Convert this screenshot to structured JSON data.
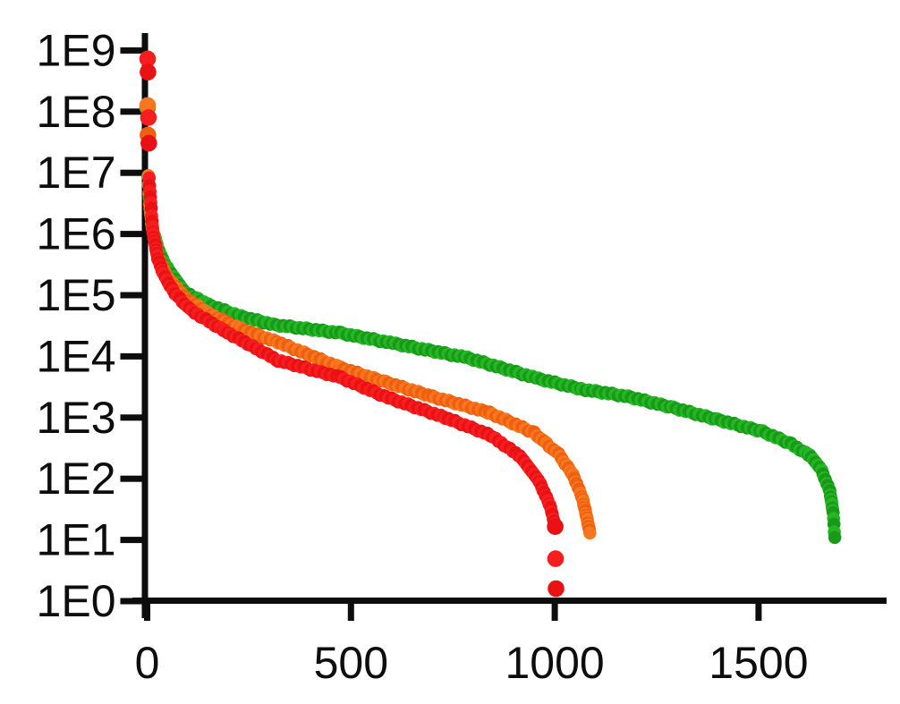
{
  "chart_data": {
    "type": "scatter",
    "title": "",
    "subtitle": "",
    "xlabel": "",
    "ylabel": "",
    "legend": "none",
    "background_color": "#ffffff",
    "axis_color": "#0d0d0d",
    "x_axis": {
      "min": 0,
      "max": 1812,
      "grid": false,
      "ticks": [
        {
          "value": 0,
          "label": "0"
        },
        {
          "value": 500,
          "label": "500"
        },
        {
          "value": 1000,
          "label": "1000"
        },
        {
          "value": 1500,
          "label": "1500"
        }
      ]
    },
    "y_axis": {
      "scale": "log",
      "min": 1,
      "max": 1000000000,
      "grid": false,
      "ticks": [
        {
          "value": 1000000000,
          "label": "1E9"
        },
        {
          "value": 100000000,
          "label": "1E8"
        },
        {
          "value": 10000000,
          "label": "1E7"
        },
        {
          "value": 1000000,
          "label": "1E6"
        },
        {
          "value": 100000,
          "label": "1E5"
        },
        {
          "value": 10000,
          "label": "1E4"
        },
        {
          "value": 1000,
          "label": "1E3"
        },
        {
          "value": 100,
          "label": "1E2"
        },
        {
          "value": 10,
          "label": "1E1"
        },
        {
          "value": 1,
          "label": "1E0"
        }
      ]
    },
    "series": [
      {
        "name": "green-series",
        "color": "#25b525",
        "color_dark": "#169a18",
        "points": [
          [
            1,
            120000000
          ],
          [
            2,
            9000000
          ],
          [
            4,
            4500000
          ],
          [
            8,
            2200000
          ],
          [
            14,
            1150000
          ],
          [
            30,
            500000
          ],
          [
            55,
            240000
          ],
          [
            90,
            115000
          ],
          [
            150,
            70000
          ],
          [
            230,
            45000
          ],
          [
            310,
            33000
          ],
          [
            475,
            24000
          ],
          [
            610,
            16000
          ],
          [
            785,
            9500
          ],
          [
            960,
            4300
          ],
          [
            1068,
            2900
          ],
          [
            1180,
            2200
          ],
          [
            1290,
            1450
          ],
          [
            1400,
            920
          ],
          [
            1510,
            590
          ],
          [
            1580,
            370
          ],
          [
            1625,
            240
          ],
          [
            1655,
            135
          ],
          [
            1675,
            62
          ],
          [
            1683,
            28
          ],
          [
            1687,
            11
          ]
        ]
      },
      {
        "name": "orange-series",
        "color": "#f8761d",
        "color_dark": "#ee5f0f",
        "points": [
          [
            1,
            130000000
          ],
          [
            2,
            42000000
          ],
          [
            3,
            9000000
          ],
          [
            6,
            3200000
          ],
          [
            12,
            1300000
          ],
          [
            25,
            450000
          ],
          [
            50,
            190000
          ],
          [
            90,
            95000
          ],
          [
            150,
            50000
          ],
          [
            230,
            28000
          ],
          [
            321,
            17000
          ],
          [
            475,
            6500
          ],
          [
            585,
            3800
          ],
          [
            700,
            2200
          ],
          [
            840,
            1200
          ],
          [
            950,
            560
          ],
          [
            1010,
            250
          ],
          [
            1045,
            115
          ],
          [
            1068,
            48
          ],
          [
            1080,
            21
          ],
          [
            1086,
            13
          ]
        ]
      },
      {
        "name": "red-series",
        "color": "#f81e20",
        "color_dark": "#e81113",
        "points": [
          [
            1,
            750000000
          ],
          [
            2,
            450000000
          ],
          [
            3,
            80000000
          ],
          [
            4,
            30000000
          ],
          [
            5,
            8000000
          ],
          [
            9,
            3200000
          ],
          [
            14,
            1050000
          ],
          [
            26,
            400000
          ],
          [
            40,
            220000
          ],
          [
            68,
            105000
          ],
          [
            110,
            55000
          ],
          [
            190,
            26000
          ],
          [
            321,
            8600
          ],
          [
            475,
            4500
          ],
          [
            584,
            2200
          ],
          [
            731,
            1000
          ],
          [
            841,
            520
          ],
          [
            914,
            235
          ],
          [
            962,
            90
          ],
          [
            988,
            37
          ],
          [
            1001,
            17
          ],
          [
            1002,
            5
          ],
          [
            1003,
            1.6
          ]
        ]
      }
    ]
  }
}
